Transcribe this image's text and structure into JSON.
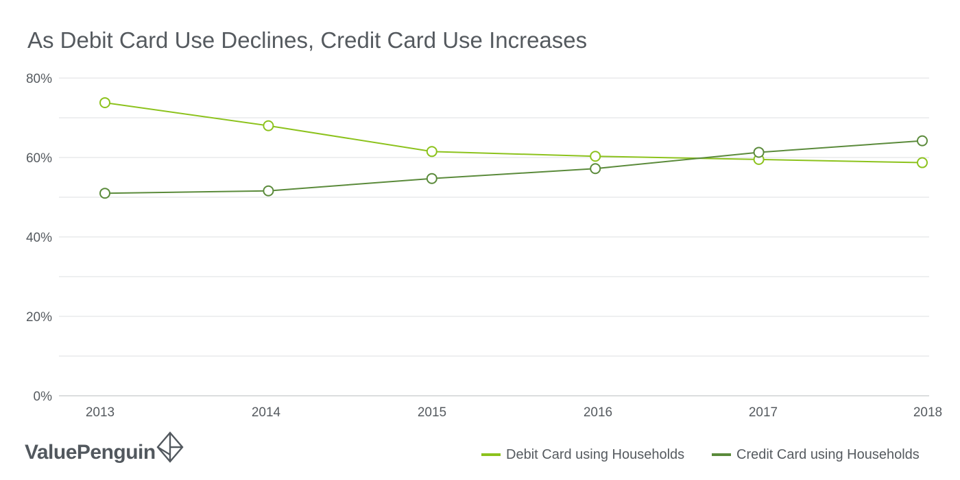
{
  "chart_data": {
    "type": "line",
    "title": "As Debit Card Use Declines, Credit Card Use Increases",
    "categories": [
      "2013",
      "2014",
      "2015",
      "2016",
      "2017",
      "2018"
    ],
    "ylim": [
      0,
      80
    ],
    "yticks": [
      0,
      20,
      40,
      60,
      80
    ],
    "ytick_labels": [
      "0%",
      "20%",
      "40%",
      "60%",
      "80%"
    ],
    "gridlines_every": 10,
    "series": [
      {
        "name": "Debit Card using Households",
        "color": "#8cc21c",
        "values": [
          73.8,
          68.0,
          61.5,
          60.3,
          59.5,
          58.7
        ]
      },
      {
        "name": "Credit Card using Households",
        "color": "#5a8a3a",
        "values": [
          51.0,
          51.6,
          54.7,
          57.2,
          61.3,
          64.2
        ]
      }
    ],
    "legend_position": "bottom-right"
  },
  "brand": {
    "name": "ValuePenguin"
  }
}
